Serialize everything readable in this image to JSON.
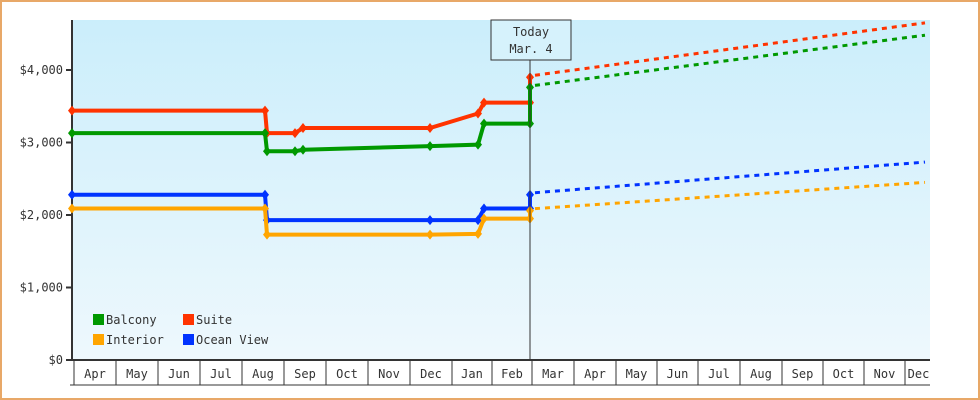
{
  "chart_data": {
    "type": "line",
    "title": "",
    "xlabel": "",
    "ylabel": "",
    "ylim": [
      0,
      4700
    ],
    "y_ticks": [
      "$0",
      "$1,000",
      "$2,000",
      "$3,000",
      "$4,000"
    ],
    "x_ticks": [
      "Apr",
      "May",
      "Jun",
      "Jul",
      "Aug",
      "Sep",
      "Oct",
      "Nov",
      "Dec",
      "Jan",
      "Feb",
      "Mar",
      "Apr",
      "May",
      "Jun",
      "Jul",
      "Aug",
      "Sep",
      "Oct",
      "Nov",
      "Dec"
    ],
    "today_marker": {
      "line1": "Today",
      "line2": "Mar. 4"
    },
    "legend": [
      {
        "name": "Balcony",
        "color": "#009900"
      },
      {
        "name": "Suite",
        "color": "#ff3300"
      },
      {
        "name": "Interior",
        "color": "#ffa500"
      },
      {
        "name": "Ocean View",
        "color": "#0033ff"
      }
    ],
    "series": [
      {
        "name": "Suite",
        "color": "#ff3300",
        "history": [
          [
            "Apr",
            3440
          ],
          [
            "Aug",
            3440
          ],
          [
            "Aug",
            3130
          ],
          [
            "Sep",
            3130
          ],
          [
            "Sep",
            3200
          ],
          [
            "Dec",
            3200
          ],
          [
            "Jan",
            3400
          ],
          [
            "Jan",
            3550
          ],
          [
            "Today",
            3550
          ],
          [
            "Today",
            3900
          ]
        ],
        "forecast": [
          [
            "Today",
            3900
          ],
          [
            "Dec",
            4650
          ]
        ]
      },
      {
        "name": "Balcony",
        "color": "#009900",
        "history": [
          [
            "Apr",
            3130
          ],
          [
            "Aug",
            3130
          ],
          [
            "Aug",
            2880
          ],
          [
            "Sep",
            2880
          ],
          [
            "Sep",
            2900
          ],
          [
            "Dec",
            2950
          ],
          [
            "Jan",
            2970
          ],
          [
            "Jan",
            3260
          ],
          [
            "Today",
            3260
          ],
          [
            "Today",
            3760
          ]
        ],
        "forecast": [
          [
            "Today",
            3760
          ],
          [
            "Dec",
            4480
          ]
        ]
      },
      {
        "name": "Ocean View",
        "color": "#0033ff",
        "history": [
          [
            "Apr",
            2280
          ],
          [
            "Aug",
            2280
          ],
          [
            "Aug",
            1930
          ],
          [
            "Dec",
            1930
          ],
          [
            "Jan",
            1930
          ],
          [
            "Jan",
            2090
          ],
          [
            "Today",
            2090
          ],
          [
            "Today",
            2280
          ]
        ],
        "forecast": [
          [
            "Today",
            2280
          ],
          [
            "Dec",
            2730
          ]
        ]
      },
      {
        "name": "Interior",
        "color": "#ffa500",
        "history": [
          [
            "Apr",
            2090
          ],
          [
            "Aug",
            2090
          ],
          [
            "Aug",
            1730
          ],
          [
            "Dec",
            1730
          ],
          [
            "Jan",
            1740
          ],
          [
            "Jan",
            1950
          ],
          [
            "Today",
            1950
          ],
          [
            "Today",
            2060
          ]
        ],
        "forecast": [
          [
            "Today",
            2060
          ],
          [
            "Dec",
            2450
          ]
        ]
      }
    ]
  }
}
